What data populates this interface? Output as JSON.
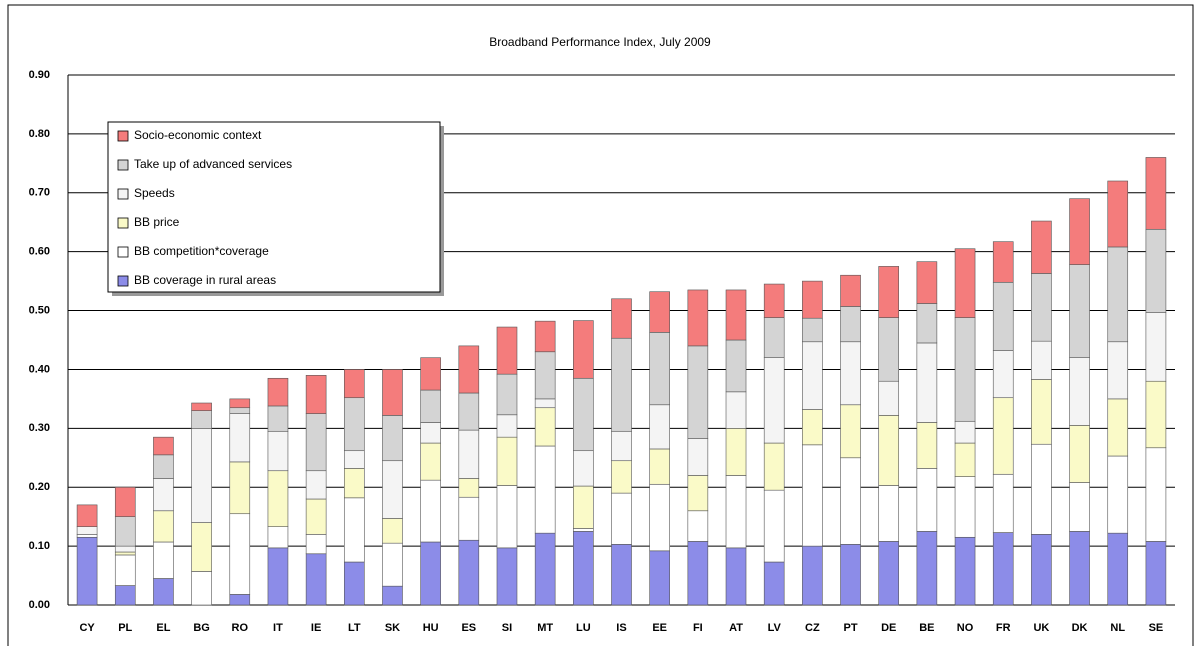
{
  "chart_data": {
    "type": "bar",
    "stacked": true,
    "title": "Broadband Performance Index, July 2009",
    "categories": [
      "CY",
      "PL",
      "EL",
      "BG",
      "RO",
      "IT",
      "IE",
      "LT",
      "SK",
      "HU",
      "ES",
      "SI",
      "MT",
      "LU",
      "IS",
      "EE",
      "FI",
      "AT",
      "LV",
      "CZ",
      "PT",
      "DE",
      "BE",
      "NO",
      "FR",
      "UK",
      "DK",
      "NL",
      "SE"
    ],
    "series": [
      {
        "name": "BB coverage in rural areas",
        "color": "#8c8ce8",
        "values": [
          0.115,
          0.033,
          0.045,
          0.0,
          0.018,
          0.097,
          0.087,
          0.073,
          0.032,
          0.107,
          0.11,
          0.097,
          0.122,
          0.125,
          0.103,
          0.092,
          0.108,
          0.097,
          0.073,
          0.1,
          0.103,
          0.108,
          0.125,
          0.115,
          0.123,
          0.12,
          0.125,
          0.122,
          0.108
        ]
      },
      {
        "name": "BB competition*coverage",
        "color": "#ffffff",
        "values": [
          0.005,
          0.052,
          0.062,
          0.057,
          0.137,
          0.036,
          0.033,
          0.109,
          0.073,
          0.105,
          0.073,
          0.106,
          0.148,
          0.005,
          0.087,
          0.113,
          0.052,
          0.123,
          0.122,
          0.172,
          0.147,
          0.095,
          0.107,
          0.103,
          0.099,
          0.153,
          0.083,
          0.131,
          0.159
        ]
      },
      {
        "name": "BB price",
        "color": "#fafac8",
        "values": [
          0.0,
          0.005,
          0.053,
          0.083,
          0.088,
          0.095,
          0.06,
          0.05,
          0.042,
          0.063,
          0.032,
          0.082,
          0.065,
          0.072,
          0.055,
          0.06,
          0.06,
          0.08,
          0.08,
          0.06,
          0.09,
          0.119,
          0.078,
          0.057,
          0.13,
          0.11,
          0.097,
          0.097,
          0.113
        ]
      },
      {
        "name": "Speeds",
        "color": "#f4f4f4",
        "values": [
          0.013,
          0.01,
          0.055,
          0.16,
          0.082,
          0.067,
          0.048,
          0.03,
          0.098,
          0.035,
          0.082,
          0.038,
          0.015,
          0.06,
          0.05,
          0.075,
          0.063,
          0.062,
          0.145,
          0.115,
          0.107,
          0.058,
          0.135,
          0.037,
          0.08,
          0.065,
          0.115,
          0.097,
          0.117
        ]
      },
      {
        "name": "Take up of advanced services",
        "color": "#d4d4d4",
        "values": [
          0.0,
          0.05,
          0.04,
          0.03,
          0.01,
          0.043,
          0.097,
          0.09,
          0.077,
          0.055,
          0.063,
          0.069,
          0.08,
          0.123,
          0.158,
          0.123,
          0.157,
          0.088,
          0.068,
          0.04,
          0.06,
          0.108,
          0.067,
          0.176,
          0.116,
          0.115,
          0.158,
          0.161,
          0.141
        ]
      },
      {
        "name": "Socio-economic context",
        "color": "#f47c7c",
        "values": [
          0.037,
          0.05,
          0.03,
          0.013,
          0.015,
          0.047,
          0.065,
          0.048,
          0.078,
          0.055,
          0.08,
          0.08,
          0.052,
          0.098,
          0.067,
          0.069,
          0.095,
          0.085,
          0.057,
          0.063,
          0.053,
          0.087,
          0.071,
          0.117,
          0.069,
          0.089,
          0.112,
          0.112,
          0.122
        ]
      }
    ],
    "ylim": [
      0,
      0.9
    ],
    "yticks": [
      {
        "value": 0,
        "label": "0.00"
      },
      {
        "value": 0.1,
        "label": "0.10"
      },
      {
        "value": 0.2,
        "label": "0.20"
      },
      {
        "value": 0.3,
        "label": "0.30"
      },
      {
        "value": 0.4,
        "label": "0.40"
      },
      {
        "value": 0.5,
        "label": "0.50"
      },
      {
        "value": 0.6,
        "label": "0.60"
      },
      {
        "value": 0.7,
        "label": "0.70"
      },
      {
        "value": 0.8,
        "label": "0.80"
      },
      {
        "value": 0.9,
        "label": "0.90"
      }
    ],
    "grid": true,
    "legend": "upper left"
  }
}
